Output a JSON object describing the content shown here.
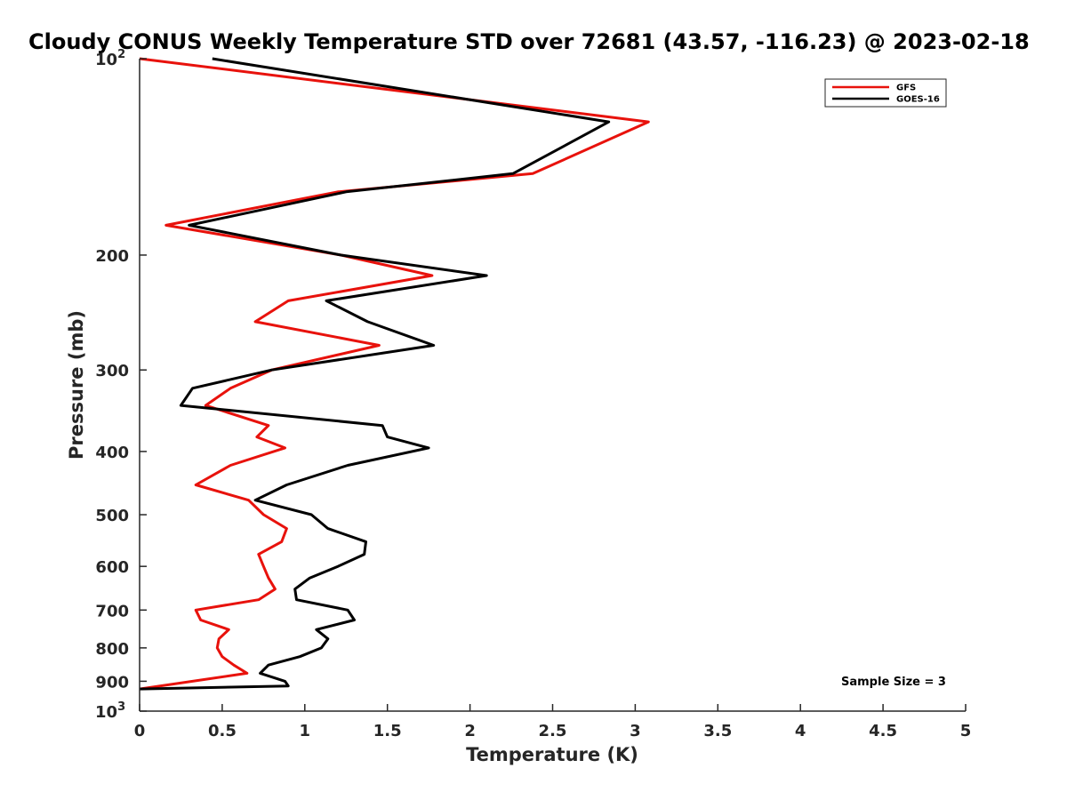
{
  "chart_data": {
    "type": "line",
    "title": "Cloudy CONUS Weekly Temperature STD over 72681 (43.57, -116.23) @ 2023-02-18",
    "xlabel": "Temperature (K)",
    "ylabel": "Pressure (mb)",
    "xlim": [
      0,
      5
    ],
    "ylim": [
      100,
      1000
    ],
    "y_scale": "log",
    "y_reversed": true,
    "x_ticks": [
      "0",
      "0.5",
      "1",
      "1.5",
      "2",
      "2.5",
      "3",
      "3.5",
      "4",
      "4.5",
      "5"
    ],
    "y_ticks": [
      {
        "value": 100,
        "label": "10",
        "sup": "2"
      },
      {
        "value": 200,
        "label": "200"
      },
      {
        "value": 300,
        "label": "300"
      },
      {
        "value": 400,
        "label": "400"
      },
      {
        "value": 500,
        "label": "500"
      },
      {
        "value": 600,
        "label": "600"
      },
      {
        "value": 700,
        "label": "700"
      },
      {
        "value": 800,
        "label": "800"
      },
      {
        "value": 900,
        "label": "900"
      },
      {
        "value": 1000,
        "label": "10",
        "sup": "3"
      }
    ],
    "legend_position": "top-right",
    "grid": false,
    "series": [
      {
        "name": "GFS",
        "color": "#e8120c",
        "points": [
          [
            0.0,
            100
          ],
          [
            3.08,
            125
          ],
          [
            2.38,
            150
          ],
          [
            1.2,
            160
          ],
          [
            0.16,
            180
          ],
          [
            1.22,
            200
          ],
          [
            1.77,
            215
          ],
          [
            0.9,
            235
          ],
          [
            0.7,
            253
          ],
          [
            1.45,
            275
          ],
          [
            0.8,
            300
          ],
          [
            0.55,
            320
          ],
          [
            0.4,
            340
          ],
          [
            0.78,
            365
          ],
          [
            0.71,
            380
          ],
          [
            0.88,
            395
          ],
          [
            0.55,
            420
          ],
          [
            0.34,
            450
          ],
          [
            0.66,
            475
          ],
          [
            0.75,
            500
          ],
          [
            0.89,
            525
          ],
          [
            0.86,
            550
          ],
          [
            0.72,
            575
          ],
          [
            0.75,
            600
          ],
          [
            0.78,
            625
          ],
          [
            0.82,
            650
          ],
          [
            0.72,
            675
          ],
          [
            0.34,
            700
          ],
          [
            0.37,
            725
          ],
          [
            0.54,
            750
          ],
          [
            0.48,
            775
          ],
          [
            0.47,
            800
          ],
          [
            0.5,
            825
          ],
          [
            0.57,
            850
          ],
          [
            0.65,
            875
          ],
          [
            0.0,
            925
          ]
        ]
      },
      {
        "name": "GOES-16",
        "color": "#000000",
        "points": [
          [
            0.44,
            100
          ],
          [
            2.84,
            125
          ],
          [
            2.26,
            150
          ],
          [
            1.25,
            160
          ],
          [
            0.3,
            180
          ],
          [
            1.22,
            200
          ],
          [
            2.1,
            215
          ],
          [
            1.13,
            235
          ],
          [
            1.38,
            253
          ],
          [
            1.78,
            275
          ],
          [
            0.8,
            300
          ],
          [
            0.32,
            320
          ],
          [
            0.25,
            340
          ],
          [
            1.47,
            365
          ],
          [
            1.5,
            380
          ],
          [
            1.75,
            395
          ],
          [
            1.26,
            420
          ],
          [
            0.89,
            450
          ],
          [
            0.7,
            475
          ],
          [
            1.04,
            500
          ],
          [
            1.14,
            525
          ],
          [
            1.37,
            550
          ],
          [
            1.36,
            575
          ],
          [
            1.2,
            600
          ],
          [
            1.03,
            625
          ],
          [
            0.94,
            650
          ],
          [
            0.95,
            675
          ],
          [
            1.26,
            700
          ],
          [
            1.3,
            725
          ],
          [
            1.07,
            750
          ],
          [
            1.14,
            775
          ],
          [
            1.1,
            800
          ],
          [
            0.97,
            825
          ],
          [
            0.78,
            850
          ],
          [
            0.73,
            875
          ],
          [
            0.88,
            900
          ],
          [
            0.9,
            915
          ],
          [
            0.0,
            925
          ]
        ]
      }
    ],
    "annotation": "Sample Size = 3"
  }
}
